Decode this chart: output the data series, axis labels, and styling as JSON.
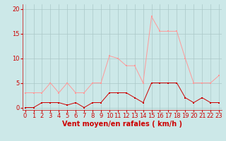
{
  "x": [
    0,
    1,
    2,
    3,
    4,
    5,
    6,
    7,
    8,
    9,
    10,
    11,
    12,
    13,
    14,
    15,
    16,
    17,
    18,
    19,
    20,
    21,
    22,
    23
  ],
  "wind_avg": [
    0,
    0,
    1,
    1,
    1,
    0.5,
    1,
    0,
    1,
    1,
    3,
    3,
    3,
    2,
    1,
    5,
    5,
    5,
    5,
    2,
    1,
    2,
    1,
    1
  ],
  "wind_gust": [
    3,
    3,
    3,
    5,
    3,
    5,
    3,
    3,
    5,
    5,
    10.5,
    10,
    8.5,
    8.5,
    5,
    18.5,
    15.5,
    15.5,
    15.5,
    10,
    5,
    5,
    5,
    6.5
  ],
  "bg_color": "#cce8e8",
  "grid_color": "#aac8c8",
  "line_avg_color": "#cc0000",
  "line_gust_color": "#ff9999",
  "marker_avg_color": "#cc0000",
  "marker_gust_color": "#ffaaaa",
  "xlabel": "Vent moyen/en rafales ( km/h )",
  "yticks": [
    0,
    5,
    10,
    15,
    20
  ],
  "ylim": [
    -0.5,
    21
  ],
  "xlim": [
    -0.3,
    23.3
  ],
  "axis_color": "#cc0000",
  "tick_color": "#cc0000",
  "xlabel_color": "#cc0000",
  "xlabel_fontsize": 7,
  "tick_fontsize": 6
}
